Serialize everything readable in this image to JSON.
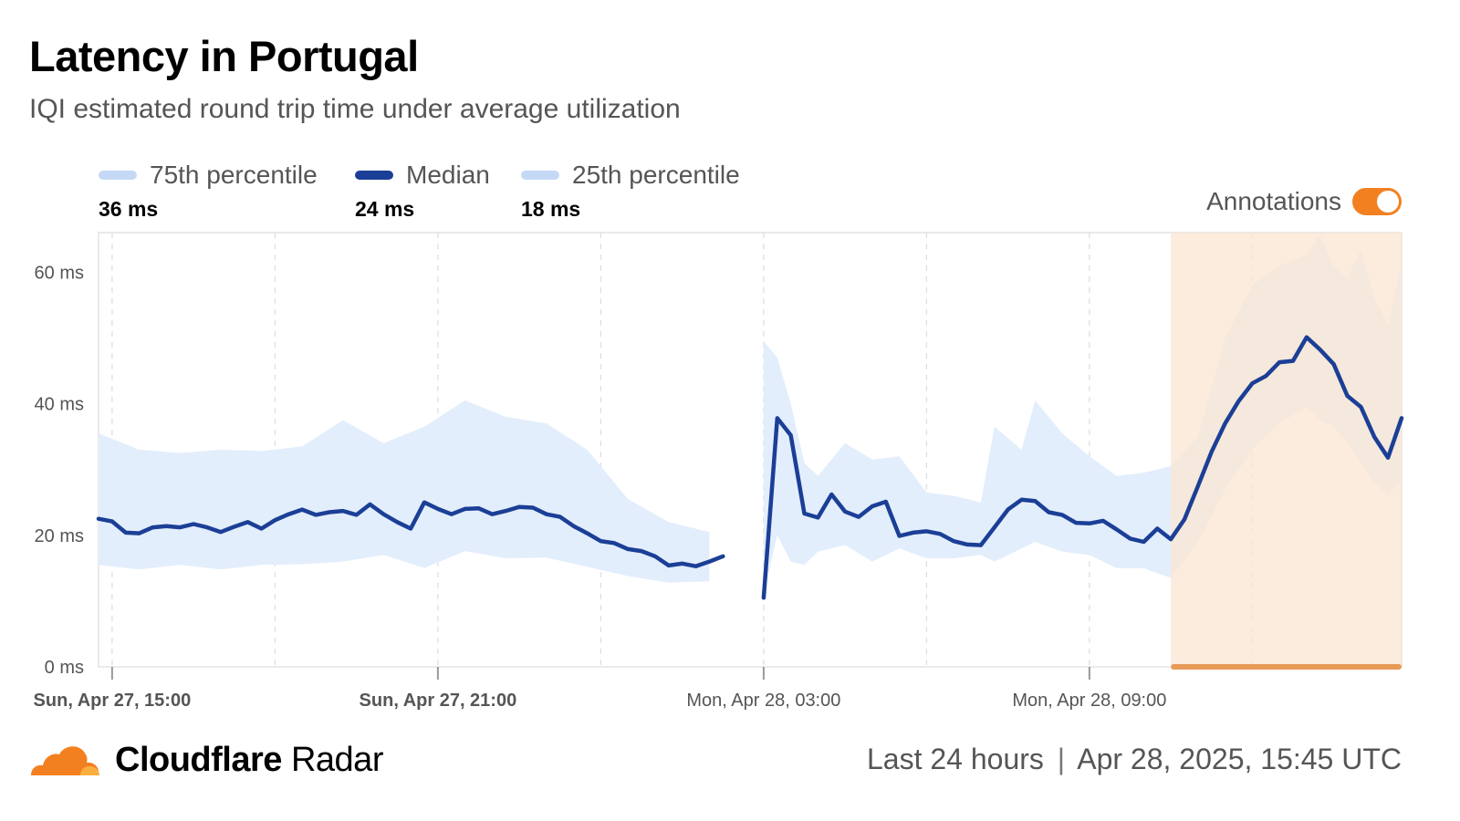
{
  "header": {
    "title": "Latency in Portugal",
    "subtitle": "IQI estimated round trip time under average utilization"
  },
  "legend": [
    {
      "label": "75th percentile",
      "value": "36 ms",
      "color": "#c5d9f7"
    },
    {
      "label": "Median",
      "value": "24 ms",
      "color": "#1b3f96"
    },
    {
      "label": "25th percentile",
      "value": "18 ms",
      "color": "#c5d9f7"
    }
  ],
  "annotations": {
    "label": "Annotations",
    "enabled": true,
    "color": "#f38020"
  },
  "footer": {
    "brand_bold": "Cloudflare",
    "brand_light": "Radar",
    "range": "Last 24 hours",
    "timestamp": "Apr 28, 2025, 15:45 UTC"
  },
  "chart_data": {
    "type": "line",
    "x_unit": "hours since Sun, Apr 27, 15:00",
    "y_ticks": [
      "0 ms",
      "20 ms",
      "40 ms",
      "60 ms"
    ],
    "ylim": [
      0,
      66
    ],
    "xlim": [
      -0.25,
      23.75
    ],
    "x_ticks": [
      {
        "x": 0,
        "label": "Sun, Apr 27, 15:00",
        "bold": true
      },
      {
        "x": 6,
        "label": "Sun, Apr 27, 21:00",
        "bold": true
      },
      {
        "x": 12,
        "label": "Mon, Apr 28, 03:00",
        "bold": false
      },
      {
        "x": 18,
        "label": "Mon, Apr 28, 09:00",
        "bold": false
      }
    ],
    "grid_x": [
      0,
      3,
      6,
      9,
      12,
      15,
      18,
      21
    ],
    "annotation_range": [
      19.5,
      23.75
    ],
    "colors": {
      "band": "#e3eefc",
      "median": "#1b3f96",
      "annotation_fill": "#fbe6d2",
      "annotation_bar": "#e89a57",
      "grid": "#dddddd",
      "axis_text": "#555555"
    },
    "series": [
      {
        "name": "Median",
        "segments": [
          {
            "x": [
              -0.25,
              0,
              0.25,
              0.5,
              0.75,
              1,
              1.25,
              1.5,
              1.75,
              2,
              2.25,
              2.5,
              2.75,
              3,
              3.25,
              3.5,
              3.75,
              4,
              4.25,
              4.5,
              4.75,
              5,
              5.25,
              5.5,
              5.75,
              6,
              6.25,
              6.5,
              6.75,
              7,
              7.25,
              7.5,
              7.75,
              8,
              8.25,
              8.5,
              8.75,
              9,
              9.25,
              9.5,
              9.75,
              10,
              10.25,
              10.5,
              10.75,
              11,
              11.25
            ],
            "y": [
              22.5,
              22.1,
              20.4,
              20.3,
              21.2,
              21.4,
              21.2,
              21.7,
              21.2,
              20.5,
              21.3,
              22.0,
              21.0,
              22.3,
              23.2,
              23.9,
              23.1,
              23.5,
              23.7,
              23.1,
              24.7,
              23.2,
              22.0,
              21.0,
              25.0,
              24.0,
              23.2,
              24.0,
              24.1,
              23.2,
              23.7,
              24.3,
              24.2,
              23.2,
              22.8,
              21.4,
              20.3,
              19.1,
              18.8,
              17.9,
              17.6,
              16.8,
              15.4,
              15.7,
              15.3,
              16.0,
              16.8
            ]
          },
          {
            "x": [
              12,
              12.25,
              12.5,
              12.75,
              13,
              13.25,
              13.5,
              13.75,
              14,
              14.25,
              14.5,
              14.75,
              15,
              15.25,
              15.5,
              15.75,
              16,
              16.25,
              16.5,
              16.75,
              17,
              17.25,
              17.5,
              17.75,
              18,
              18.25,
              18.5,
              18.75,
              19,
              19.25,
              19.5,
              19.75,
              20,
              20.25,
              20.5,
              20.75,
              21,
              21.25,
              21.5,
              21.75,
              22,
              22.25,
              22.5,
              22.75,
              23,
              23.25,
              23.5,
              23.75
            ],
            "y": [
              10.5,
              37.8,
              35.2,
              23.3,
              22.7,
              26.2,
              23.6,
              22.8,
              24.4,
              25.1,
              19.9,
              20.4,
              20.6,
              20.2,
              19.1,
              18.6,
              18.5,
              21.2,
              23.9,
              25.4,
              25.2,
              23.5,
              23.1,
              21.9,
              21.8,
              22.2,
              20.9,
              19.5,
              19.0,
              21.0,
              19.4,
              22.4,
              27.5,
              32.7,
              37.0,
              40.4,
              43.1,
              44.2,
              46.3,
              46.5,
              50.1,
              48.2,
              46.0,
              41.2,
              39.5,
              34.9,
              31.8,
              37.8
            ]
          }
        ]
      },
      {
        "name": "75th percentile",
        "segments": [
          {
            "x": [
              -0.25,
              0.5,
              1.25,
              2,
              2.75,
              3.5,
              4.25,
              5,
              5.75,
              6.5,
              7.25,
              8,
              8.75,
              9.5,
              10.25,
              11
            ],
            "y": [
              35.5,
              33.0,
              32.5,
              33.0,
              32.8,
              33.5,
              37.5,
              34.0,
              36.5,
              40.5,
              38.0,
              37.0,
              33.0,
              25.5,
              22.0,
              20.5
            ]
          },
          {
            "x": [
              12,
              12.25,
              12.5,
              12.75,
              13,
              13.5,
              14,
              14.5,
              15,
              15.5,
              16,
              16.25,
              16.75,
              17,
              17.5,
              18,
              18.5,
              19,
              19.5,
              20,
              20.5,
              21,
              21.5,
              22,
              22.25,
              22.5,
              22.75,
              23,
              23.25,
              23.5,
              23.75
            ],
            "y": [
              49.5,
              47.0,
              40.0,
              31.0,
              29.0,
              34.0,
              31.5,
              32.0,
              26.5,
              26.0,
              25.0,
              36.5,
              33.0,
              40.5,
              35.5,
              32.0,
              29.0,
              29.5,
              30.5,
              35.0,
              50.0,
              58.0,
              61.0,
              62.5,
              65.5,
              61.0,
              59.0,
              63.5,
              56.0,
              52.0,
              61.5
            ]
          }
        ]
      },
      {
        "name": "25th percentile",
        "segments": [
          {
            "x": [
              -0.25,
              0.5,
              1.25,
              2,
              2.75,
              3.5,
              4.25,
              5,
              5.75,
              6.5,
              7.25,
              8,
              8.75,
              9.5,
              10.25,
              11
            ],
            "y": [
              15.5,
              14.8,
              15.5,
              14.8,
              15.5,
              15.6,
              16.0,
              17.0,
              15.0,
              17.6,
              16.5,
              16.6,
              15.2,
              13.8,
              12.8,
              13.0
            ]
          },
          {
            "x": [
              12,
              12.25,
              12.5,
              12.75,
              13,
              13.5,
              14,
              14.5,
              15,
              15.5,
              16,
              16.25,
              16.75,
              17,
              17.5,
              18,
              18.5,
              19,
              19.5,
              20,
              20.5,
              21,
              21.5,
              22,
              22.25,
              22.5,
              22.75,
              23,
              23.25,
              23.5,
              23.75
            ],
            "y": [
              11.0,
              20.0,
              16.0,
              15.5,
              17.5,
              18.5,
              16.0,
              18.0,
              16.5,
              16.5,
              17.0,
              16.0,
              18.0,
              19.0,
              17.5,
              17.0,
              15.0,
              15.0,
              13.5,
              19.0,
              27.0,
              33.0,
              37.0,
              39.5,
              37.5,
              36.5,
              34.0,
              31.0,
              28.0,
              26.0,
              28.5
            ]
          }
        ]
      }
    ]
  }
}
